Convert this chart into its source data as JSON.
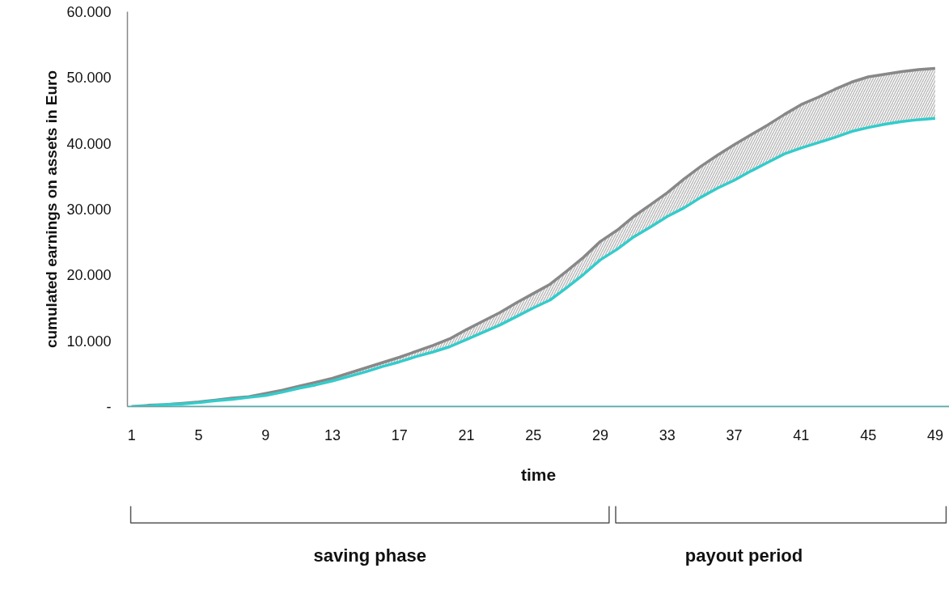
{
  "chart_data": {
    "type": "line",
    "xlabel": "time",
    "ylabel": "cumulated earnings on assets in Euro",
    "x": [
      1,
      2,
      3,
      4,
      5,
      6,
      7,
      8,
      9,
      10,
      11,
      12,
      13,
      14,
      15,
      16,
      17,
      18,
      19,
      20,
      21,
      22,
      23,
      24,
      25,
      26,
      27,
      28,
      29,
      30,
      31,
      32,
      33,
      34,
      35,
      36,
      37,
      38,
      39,
      40,
      41,
      42,
      43,
      44,
      45,
      46,
      47,
      48,
      49
    ],
    "series": [
      {
        "color": "#888888",
        "values": [
          0,
          200,
          300,
          500,
          700,
          1000,
          1300,
          1500,
          2000,
          2500,
          3100,
          3700,
          4300,
          5100,
          5900,
          6700,
          7500,
          8400,
          9300,
          10300,
          11700,
          13000,
          14300,
          15800,
          17200,
          18600,
          20600,
          22700,
          25100,
          26800,
          28900,
          30700,
          32500,
          34600,
          36500,
          38200,
          39800,
          41300,
          42800,
          44400,
          45900,
          47000,
          48200,
          49300,
          50100,
          50500,
          50900,
          51200,
          51400
        ],
        "lower": [
          0,
          100,
          300,
          400,
          600,
          900,
          1100,
          1400,
          1700,
          2200,
          2800,
          3300,
          3900,
          4600,
          5300,
          6100,
          6800,
          7600,
          8300,
          9100,
          10200,
          11300,
          12400,
          13700,
          15000,
          16200,
          18100,
          20100,
          22300,
          23900,
          25800,
          27300,
          28900,
          30200,
          31800,
          33200,
          34400,
          35800,
          37100,
          38400,
          39300,
          40100,
          40900,
          41800,
          42400,
          42900,
          43300,
          43600,
          43800
        ],
        "upper": [
          0,
          200,
          300,
          500,
          700,
          1000,
          1300,
          1500,
          2000,
          2500,
          3100,
          3700,
          4300,
          5100,
          5900,
          6700,
          7500,
          8400,
          9300,
          10300,
          11700,
          13000,
          14300,
          15800,
          17200,
          18600,
          20600,
          22700,
          25100,
          26800,
          28900,
          30700,
          32500,
          34600,
          36500,
          38200,
          39800,
          41300,
          42800,
          44400,
          45900,
          47000,
          48200,
          49300,
          50100,
          50500,
          50900,
          51200,
          51400
        ]
      },
      {
        "color": "#33cccc",
        "values": [
          0,
          100,
          300,
          400,
          600,
          900,
          1100,
          1400,
          1700,
          2200,
          2800,
          3300,
          3900,
          4600,
          5300,
          6100,
          6800,
          7600,
          8300,
          9100,
          10200,
          11300,
          12400,
          13700,
          15000,
          16200,
          18100,
          20100,
          22300,
          23900,
          25800,
          27300,
          28900,
          30200,
          31800,
          33200,
          34400,
          35800,
          37100,
          38400,
          39300,
          40100,
          40900,
          41800,
          42400,
          42900,
          43300,
          43600,
          43800
        ]
      }
    ],
    "xlim": [
      0.75,
      49.85
    ],
    "xticks": [
      1,
      5,
      9,
      13,
      17,
      21,
      25,
      29,
      33,
      37,
      41,
      45,
      49
    ],
    "ylim": [
      0,
      60000
    ],
    "yticks": [
      {
        "value": 0,
        "label": "-"
      },
      {
        "value": 10000,
        "label": "10.000"
      },
      {
        "value": 20000,
        "label": "20.000"
      },
      {
        "value": 30000,
        "label": "30.000"
      },
      {
        "value": 40000,
        "label": "40.000"
      },
      {
        "value": 50000,
        "label": "50.000"
      },
      {
        "value": 60000,
        "label": "60.000"
      }
    ],
    "ref_lines": [
      {
        "axis": "y",
        "value": 0,
        "color": "#33cccc"
      }
    ],
    "annotations": [
      "saving phase",
      "payout period"
    ],
    "grid": false,
    "marker": "none",
    "line_style": "solid"
  }
}
